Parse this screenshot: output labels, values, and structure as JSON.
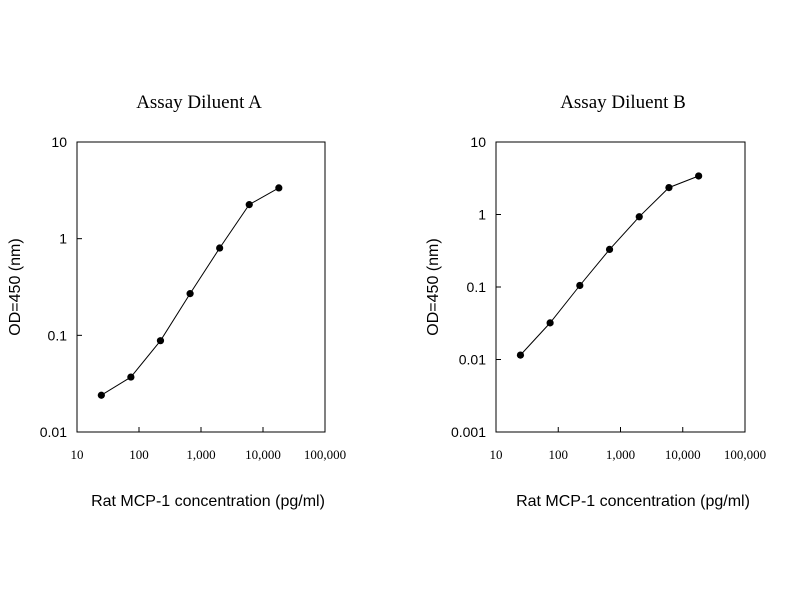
{
  "chart_data": [
    {
      "type": "line",
      "title": "Assay Diluent A",
      "xlabel": "Rat MCP-1 concentration (pg/ml)",
      "ylabel": "OD=450 (nm)",
      "xscale": "log",
      "yscale": "log",
      "xlim": [
        10,
        100000
      ],
      "ylim": [
        0.01,
        10
      ],
      "xticks": [
        "10",
        "100",
        "1,000",
        "10,000",
        "100,000"
      ],
      "yticks": [
        "10",
        "1",
        "0.1",
        "0.01"
      ],
      "grid": false,
      "x": [
        24.7,
        74,
        222,
        667,
        2000,
        6000,
        18000
      ],
      "y": [
        0.024,
        0.037,
        0.088,
        0.27,
        0.8,
        2.25,
        3.35
      ]
    },
    {
      "type": "line",
      "title": "Assay Diluent B",
      "xlabel": "Rat MCP-1 concentration (pg/ml)",
      "ylabel": "OD=450 (nm)",
      "xscale": "log",
      "yscale": "log",
      "xlim": [
        10,
        100000
      ],
      "ylim": [
        0.001,
        10
      ],
      "xticks": [
        "10",
        "100",
        "1,000",
        "10,000",
        "100,000"
      ],
      "yticks": [
        "10",
        "1",
        "0.1",
        "0.01",
        "0.001"
      ],
      "grid": false,
      "x": [
        24.7,
        74,
        222,
        667,
        2000,
        6000,
        18000
      ],
      "y": [
        0.0115,
        0.032,
        0.105,
        0.33,
        0.93,
        2.35,
        3.4
      ]
    }
  ]
}
